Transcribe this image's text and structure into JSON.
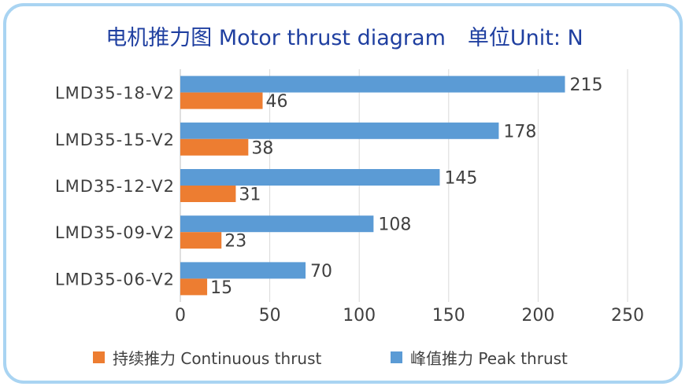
{
  "chart_data": {
    "type": "bar",
    "orientation": "horizontal",
    "title": "电机推力图 Motor thrust diagram",
    "unit_label": "单位Unit: N",
    "categories": [
      "LMD35-18-V2",
      "LMD35-15-V2",
      "LMD35-12-V2",
      "LMD35-09-V2",
      "LMD35-06-V2"
    ],
    "series": [
      {
        "name": "峰值推力 Peak thrust",
        "values": [
          215,
          178,
          145,
          108,
          70
        ],
        "color": "#5b9bd5"
      },
      {
        "name": "持续推力 Continuous thrust",
        "values": [
          46,
          38,
          31,
          23,
          15
        ],
        "color": "#ed7d31"
      }
    ],
    "xlim": [
      0,
      250
    ],
    "xticks": [
      "0",
      "50",
      "100",
      "150",
      "200",
      "250"
    ],
    "grid": true,
    "legend_position": "bottom",
    "legend_order": [
      "持续推力 Continuous thrust",
      "峰值推力 Peak thrust"
    ],
    "border_color": "#a9d4f2",
    "title_color": "#1f3fa0"
  }
}
